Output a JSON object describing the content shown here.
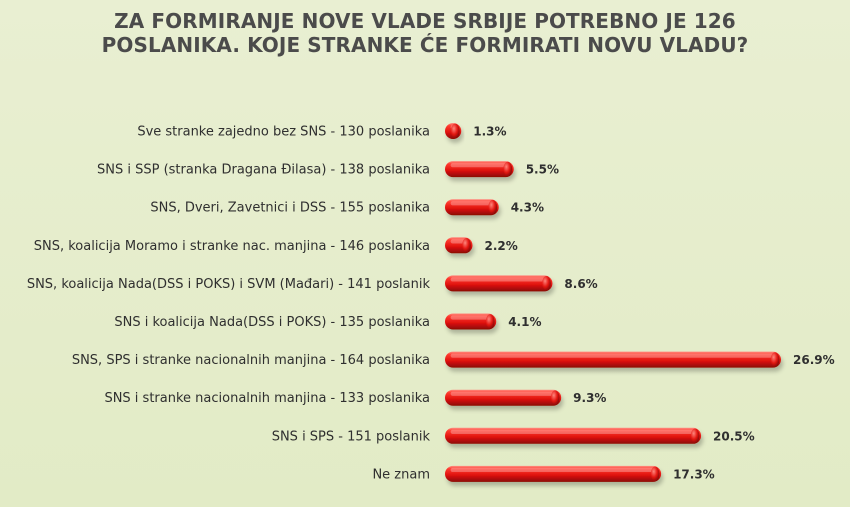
{
  "chart_data": {
    "type": "bar",
    "orientation": "horizontal",
    "title_lines": [
      "ZA FORMIRANJE NOVE VLADE SRBIJE POTREBNO JE 126",
      "POSLANIKA. KOJE STRANKE ĆE FORMIRATI NOVU VLADU?"
    ],
    "categories": [
      "Sve stranke zajedno bez SNS - 130 poslanika",
      "SNS i SSP (stranka Dragana Đilasa) - 138 poslanika",
      "SNS, Dveri, Zavetnici i DSS - 155 poslanika",
      "SNS, koalicija Moramo i stranke nac. manjina - 146 poslanika",
      "SNS, koalicija Nada(DSS i POKS) i SVM (Mađari) - 141 poslanik",
      "SNS i koalicija Nada(DSS i POKS) - 135 poslanika",
      "SNS, SPS i stranke nacionalnih manjina - 164 poslanika",
      "SNS i stranke nacionalnih manjina - 133 poslanika",
      "SNS i SPS - 151 poslanik",
      "Ne znam"
    ],
    "values": [
      1.3,
      5.5,
      4.3,
      2.2,
      8.6,
      4.1,
      26.9,
      9.3,
      20.5,
      17.3
    ],
    "value_labels": [
      "1.3%",
      "5.5%",
      "4.3%",
      "2.2%",
      "8.6%",
      "4.1%",
      "26.9%",
      "9.3%",
      "20.5%",
      "17.3%"
    ],
    "unit": "%",
    "grid": false,
    "legend": "none",
    "bar_color": "#e0120e"
  }
}
